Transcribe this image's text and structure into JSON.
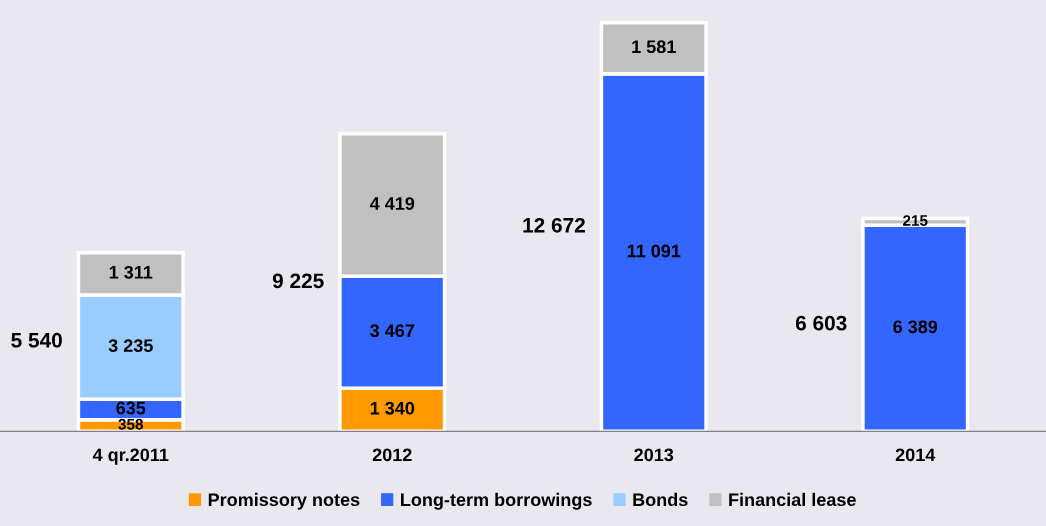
{
  "chart_data": {
    "type": "bar",
    "stacked": true,
    "categories": [
      "4 qr.2011",
      "2012",
      "2013",
      "2014"
    ],
    "series": [
      {
        "name": "Promissory notes",
        "color": "#ff9900",
        "values": [
          358,
          1340,
          null,
          null
        ],
        "value_labels": [
          "358",
          "1 340",
          null,
          null
        ]
      },
      {
        "name": "Long-term borrowings",
        "color": "#3366ff",
        "values": [
          635,
          3467,
          11091,
          6389
        ],
        "value_labels": [
          "635",
          "3 467",
          "11 091",
          "6 389"
        ]
      },
      {
        "name": "Bonds",
        "color": "#99ccff",
        "values": [
          3235,
          null,
          null,
          null
        ],
        "value_labels": [
          "3 235",
          null,
          null,
          null
        ]
      },
      {
        "name": "Financial lease",
        "color": "#c0c0c0",
        "values": [
          1311,
          4419,
          1581,
          215
        ],
        "value_labels": [
          "1 311",
          "4 419",
          "1 581",
          "215"
        ]
      }
    ],
    "totals": [
      "5 540",
      "9 225",
      "12 672",
      "6 603"
    ],
    "legend": "bottom",
    "grid": false
  }
}
